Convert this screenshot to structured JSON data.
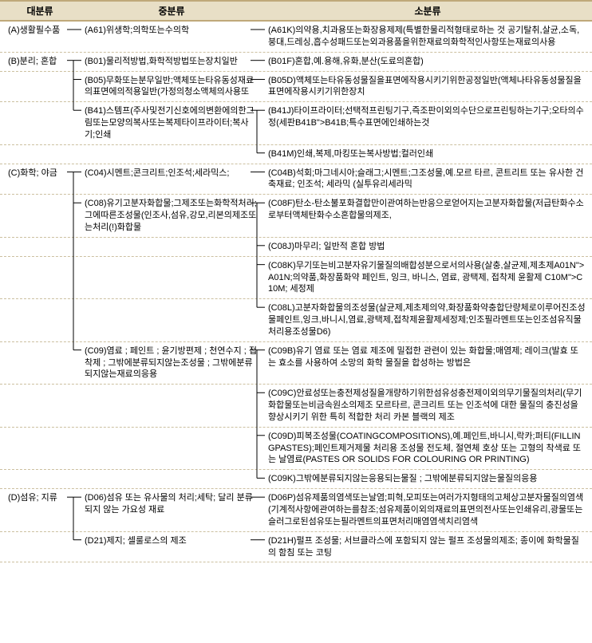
{
  "header": {
    "col1": "대분류",
    "col2": "중분류",
    "col3": "소분류",
    "bg_color": "#e8dfc6",
    "border_color": "#bfa97a"
  },
  "layout": {
    "col1_width": 100,
    "col2_width": 230,
    "total_width": 742,
    "font_size": 11,
    "line_color": "#000000",
    "row_divider_color": "#ccc0a0"
  },
  "rows": [
    {
      "level1": "(A)생활필수품",
      "level2": "(A61)위생학;의학또는수의학",
      "level3": "(A61K)의약용,치과용또는화장용제제(특별한물리적형태로하는 것 공기탈취,살균,소독,붕대,드레싱,흡수성패드또는외과용품을위한재료의화학적인사항또는재료의사용"
    },
    {
      "level1": "(B)분리; 혼합",
      "level2": "(B01)물리적방법,화학적방법또는장치일반",
      "level3": "(B01F)혼합,예.용해,유화,분산(도료의혼합)"
    },
    {
      "level1": "",
      "level2": "(B05)무화또는분무일반;액체또는타유동성재료의표면에의적용일반(가정의청소액체의사용또",
      "level3": "(B05D)액체또는타유동성물질을표면에작용시키기위한공정일반(액체나타유동성물질을표면에작용시키기위한장치"
    },
    {
      "level1": "",
      "level2": "(B41)스템프(주사및전기신호에의변환에의한그림또는모양의복사또는복제타이프라이터;복사기;인쇄",
      "level3": "(B41J)타이프라이터;선택적프린팅기구,즉조판이외의수단으로프린팅하는기구;오타의수정(세판B41B\">B41B;특수표면에인쇄하는것"
    },
    {
      "level1": "",
      "level2": "",
      "level3": "(B41M)인쇄,복제,마킹또는복사방법;컬러인쇄"
    },
    {
      "level1": "(C)화학; 야금",
      "level2": "(C04)시멘트;콘크리트;인조석;세라믹스;",
      "level3": "(C04B)석회;마그네시아;슬래그;시멘트;그조성물,예.모르 타르, 콘트리트 또는 유사한 건축재료; 인조석; 세라믹 (실투유리세라믹"
    },
    {
      "level1": "",
      "level2": "(C08)유기고분자화합물;그제조또는화학적처리;그에따른조성물(인조사,섬유,강모,리본의제조또는처리(!)화합물",
      "level3": "(C08F)탄소-탄소불포화결합만이관여하는반응으로얻어지는고분자화합물(저급탄화수소로부터액체탄화수소혼합물의제조,"
    },
    {
      "level1": "",
      "level2": "",
      "level3": "(C08J)마무리; 일반적 혼합 방법"
    },
    {
      "level1": "",
      "level2": "",
      "level3": "(C08K)무기또는비고분자유기물질의배합성분으로서의사용(살충,살균제,제초제A01N\">A01N;의약품,화장품화약 페인트, 잉크, 바니스, 염료, 광택제, 접착제 윤활제 C10M\">C10M; 세정제"
    },
    {
      "level1": "",
      "level2": "",
      "level3": "(C08L)고분자화합물의조성물(살균제,제초제의약,화장품화약충합단량체로이루어진조성물페인트,잉크,바니시,염료,광택제,접착제윤활제세정제;인조필라멘트또는인조섬유직물처리용조성물D6)"
    },
    {
      "level1": "",
      "level2": "(C09)염료 ; 페인트 ; 윤기방편제 ; 천연수지 ; 접착제 ; 그밖에분류되지않는조성물 ; 그밖에분류되지않는재료의응용",
      "level3": "(C09B)유기 염료 또는 염료 제조에 밀접한 관련이 있는 화합물;매염제; 레이크(발효 또는 효소를 사용하여 소망의 화학 물질을 합성하는 방법은"
    },
    {
      "level1": "",
      "level2": "",
      "level3": "(C09C)안료성또는충전제성질을개량하기위한섬유성충전제이외의무기물질의처리(무기화합물또는비금속원소의제조 모르타르, 콘크리트 또는 인조석에 대한 물질의 충진성을 향상시키기 위한 특히 적합한 처리 카본 블랙의 제조"
    },
    {
      "level1": "",
      "level2": "",
      "level3": "(C09D)피복조성물(COATINGCOMPOSITIONS),예.페인트,바니시,락카;퍼티(FILLINGPASTES);페인트제거제물 처리용 조성물 전도체, 절연체 호상 또는 고형의 착색료 또는 날염료(PASTES OR SOLIDS FOR COLOURING OR PRINTING)"
    },
    {
      "level1": "",
      "level2": "",
      "level3": "(C09K)그밖에분류되지않는응용되는물질 ; 그밖에분류되지않는물질의응용"
    },
    {
      "level1": "(D)섬유; 지류",
      "level2": "(D06)섬유 또는 유사물의 처리;세탁; 달리 분류되지 않는 가요성 재료",
      "level3": "(D06P)섬유제품의염색또는날염;피혁,모피또는여러가지형태의고체상고분자물질의염색(기계적사항에관여하는를참조;섬유제품이외의재료의표면의전사또는인쇄유리,광물또는슬러그로된섬유또는필라멘트의표면처리매염염색치리염색"
    },
    {
      "level1": "",
      "level2": "(D21)제지; 셀룰로스의 제조",
      "level3": "(D21H)펄프 조성물; 서브클라스에 포함되지 않는 펄프 조성물의제조; 종이에 화학물질의 함침 또는 코팅"
    }
  ],
  "connections": {
    "comment": "hierarchical bracket connectors drawn as svg overlay",
    "line_color": "#000000",
    "line_width": 1
  }
}
